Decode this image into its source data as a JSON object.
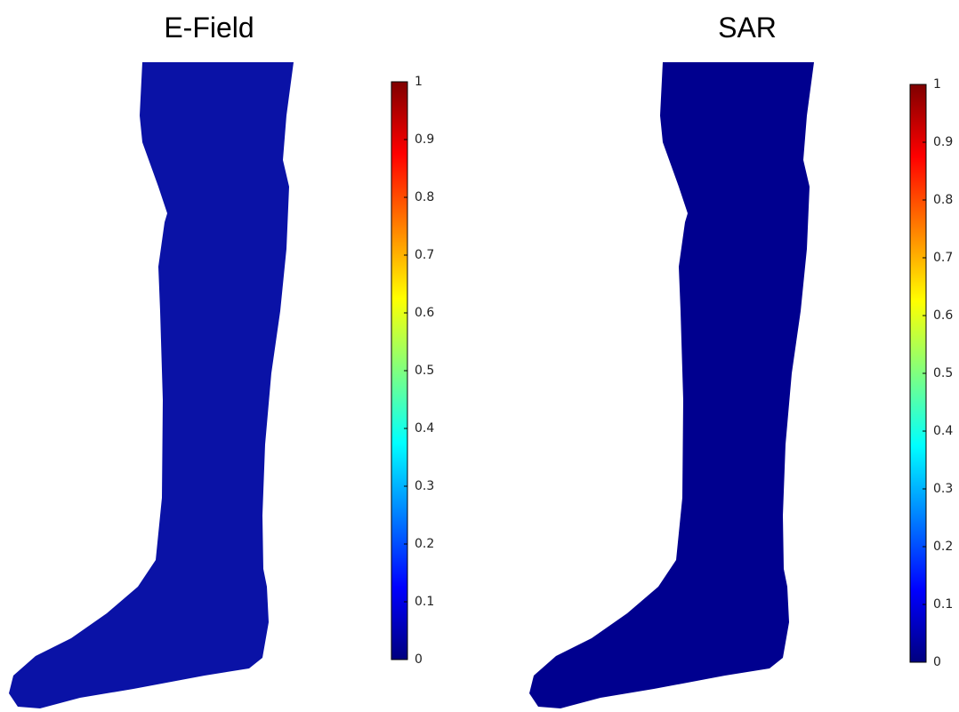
{
  "panels": [
    {
      "title": "E-Field",
      "colorbar": {
        "lim": [
          0,
          1
        ],
        "ticks": [
          0,
          0.1,
          0.2,
          0.3,
          0.4,
          0.5,
          0.6,
          0.7,
          0.8,
          0.9,
          1
        ]
      }
    },
    {
      "title": "SAR",
      "colorbar": {
        "lim": [
          0,
          1
        ],
        "ticks": [
          0,
          0.1,
          0.2,
          0.3,
          0.4,
          0.5,
          0.6,
          0.7,
          0.8,
          0.9,
          1
        ]
      }
    }
  ]
}
